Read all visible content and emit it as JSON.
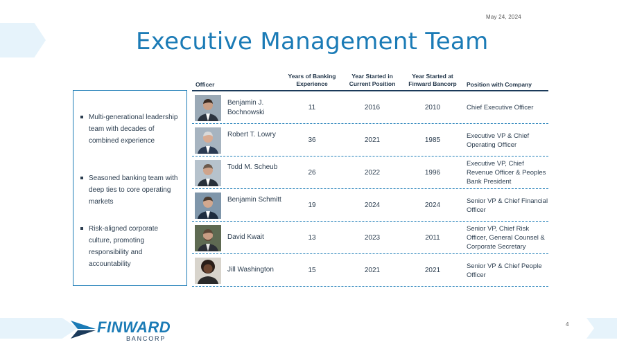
{
  "header": {
    "date": "May 24, 2024",
    "title": "Executive Management Team"
  },
  "highlights": [
    "Multi-generational leadership team with decades of combined experience",
    "Seasoned banking team with deep ties to core operating markets",
    "Risk-aligned corporate culture, promoting responsibility and accountability"
  ],
  "table": {
    "columns": {
      "officer": "Officer",
      "years": "Years of Banking Experience",
      "year_position": "Year Started in Current Position",
      "year_finward": "Year Started at Finward Bancorp",
      "position": "Position with Company"
    },
    "rows": [
      {
        "name": "Benjamin J. Bochnowski",
        "years": "11",
        "year_position": "2016",
        "year_finward": "2010",
        "position": "Chief Executive Officer"
      },
      {
        "name": "Robert T. Lowry",
        "years": "36",
        "year_position": "2021",
        "year_finward": "1985",
        "position": "Executive VP & Chief Operating Officer"
      },
      {
        "name": "Todd M. Scheub",
        "years": "26",
        "year_position": "2022",
        "year_finward": "1996",
        "position": "Executive VP, Chief Revenue Officer & Peoples Bank President"
      },
      {
        "name": "Benjamin Schmitt",
        "years": "19",
        "year_position": "2024",
        "year_finward": "2024",
        "position": "Senior VP & Chief Financial Officer"
      },
      {
        "name": "David Kwait",
        "years": "13",
        "year_position": "2023",
        "year_finward": "2011",
        "position": "Senior VP, Chief Risk Officer, General Counsel & Corporate Secretary"
      },
      {
        "name": "Jill Washington",
        "years": "15",
        "year_position": "2021",
        "year_finward": "2021",
        "position": "Senior VP & Chief People Officer"
      }
    ]
  },
  "footer": {
    "logo_main": "FINWARD",
    "logo_sub": "BANCORP",
    "page_number": "4"
  },
  "colors": {
    "accent": "#1b7bb6",
    "navy": "#1b3a5a",
    "light_band": "#e6f3fb"
  }
}
